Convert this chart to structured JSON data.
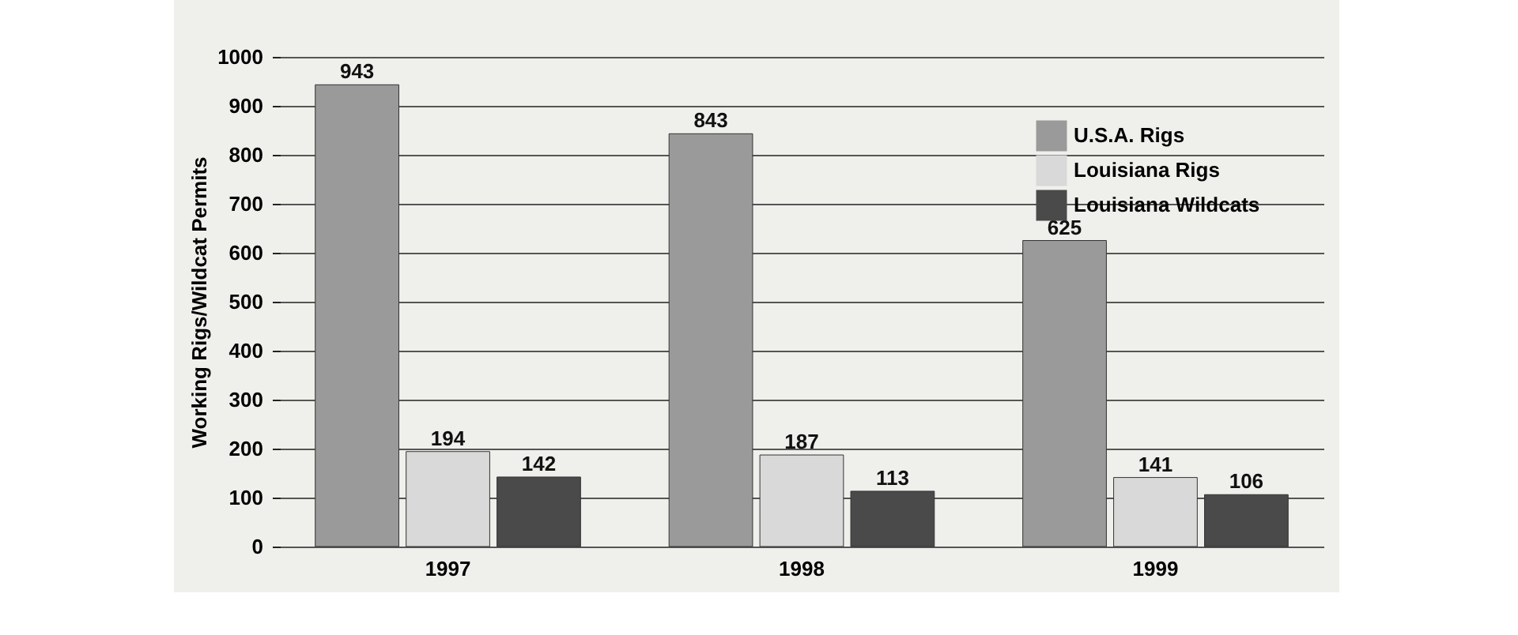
{
  "chart_data": {
    "type": "bar",
    "ylabel": "Working Rigs/Wildcat Permits",
    "categories": [
      "1997",
      "1998",
      "1999"
    ],
    "series": [
      {
        "name": "U.S.A. Rigs",
        "color": "#9a9a9a",
        "values": [
          943,
          843,
          625
        ]
      },
      {
        "name": "Louisiana Rigs",
        "color": "#d9d9d9",
        "values": [
          194,
          187,
          141
        ]
      },
      {
        "name": "Louisiana Wildcats",
        "color": "#4a4a4a",
        "values": [
          142,
          113,
          106
        ]
      }
    ],
    "ylim": [
      0,
      1000
    ],
    "yticks": [
      0,
      100,
      200,
      300,
      400,
      500,
      600,
      700,
      800,
      900,
      1000
    ],
    "grid": "y",
    "legend": "top right",
    "data_labels": true
  }
}
